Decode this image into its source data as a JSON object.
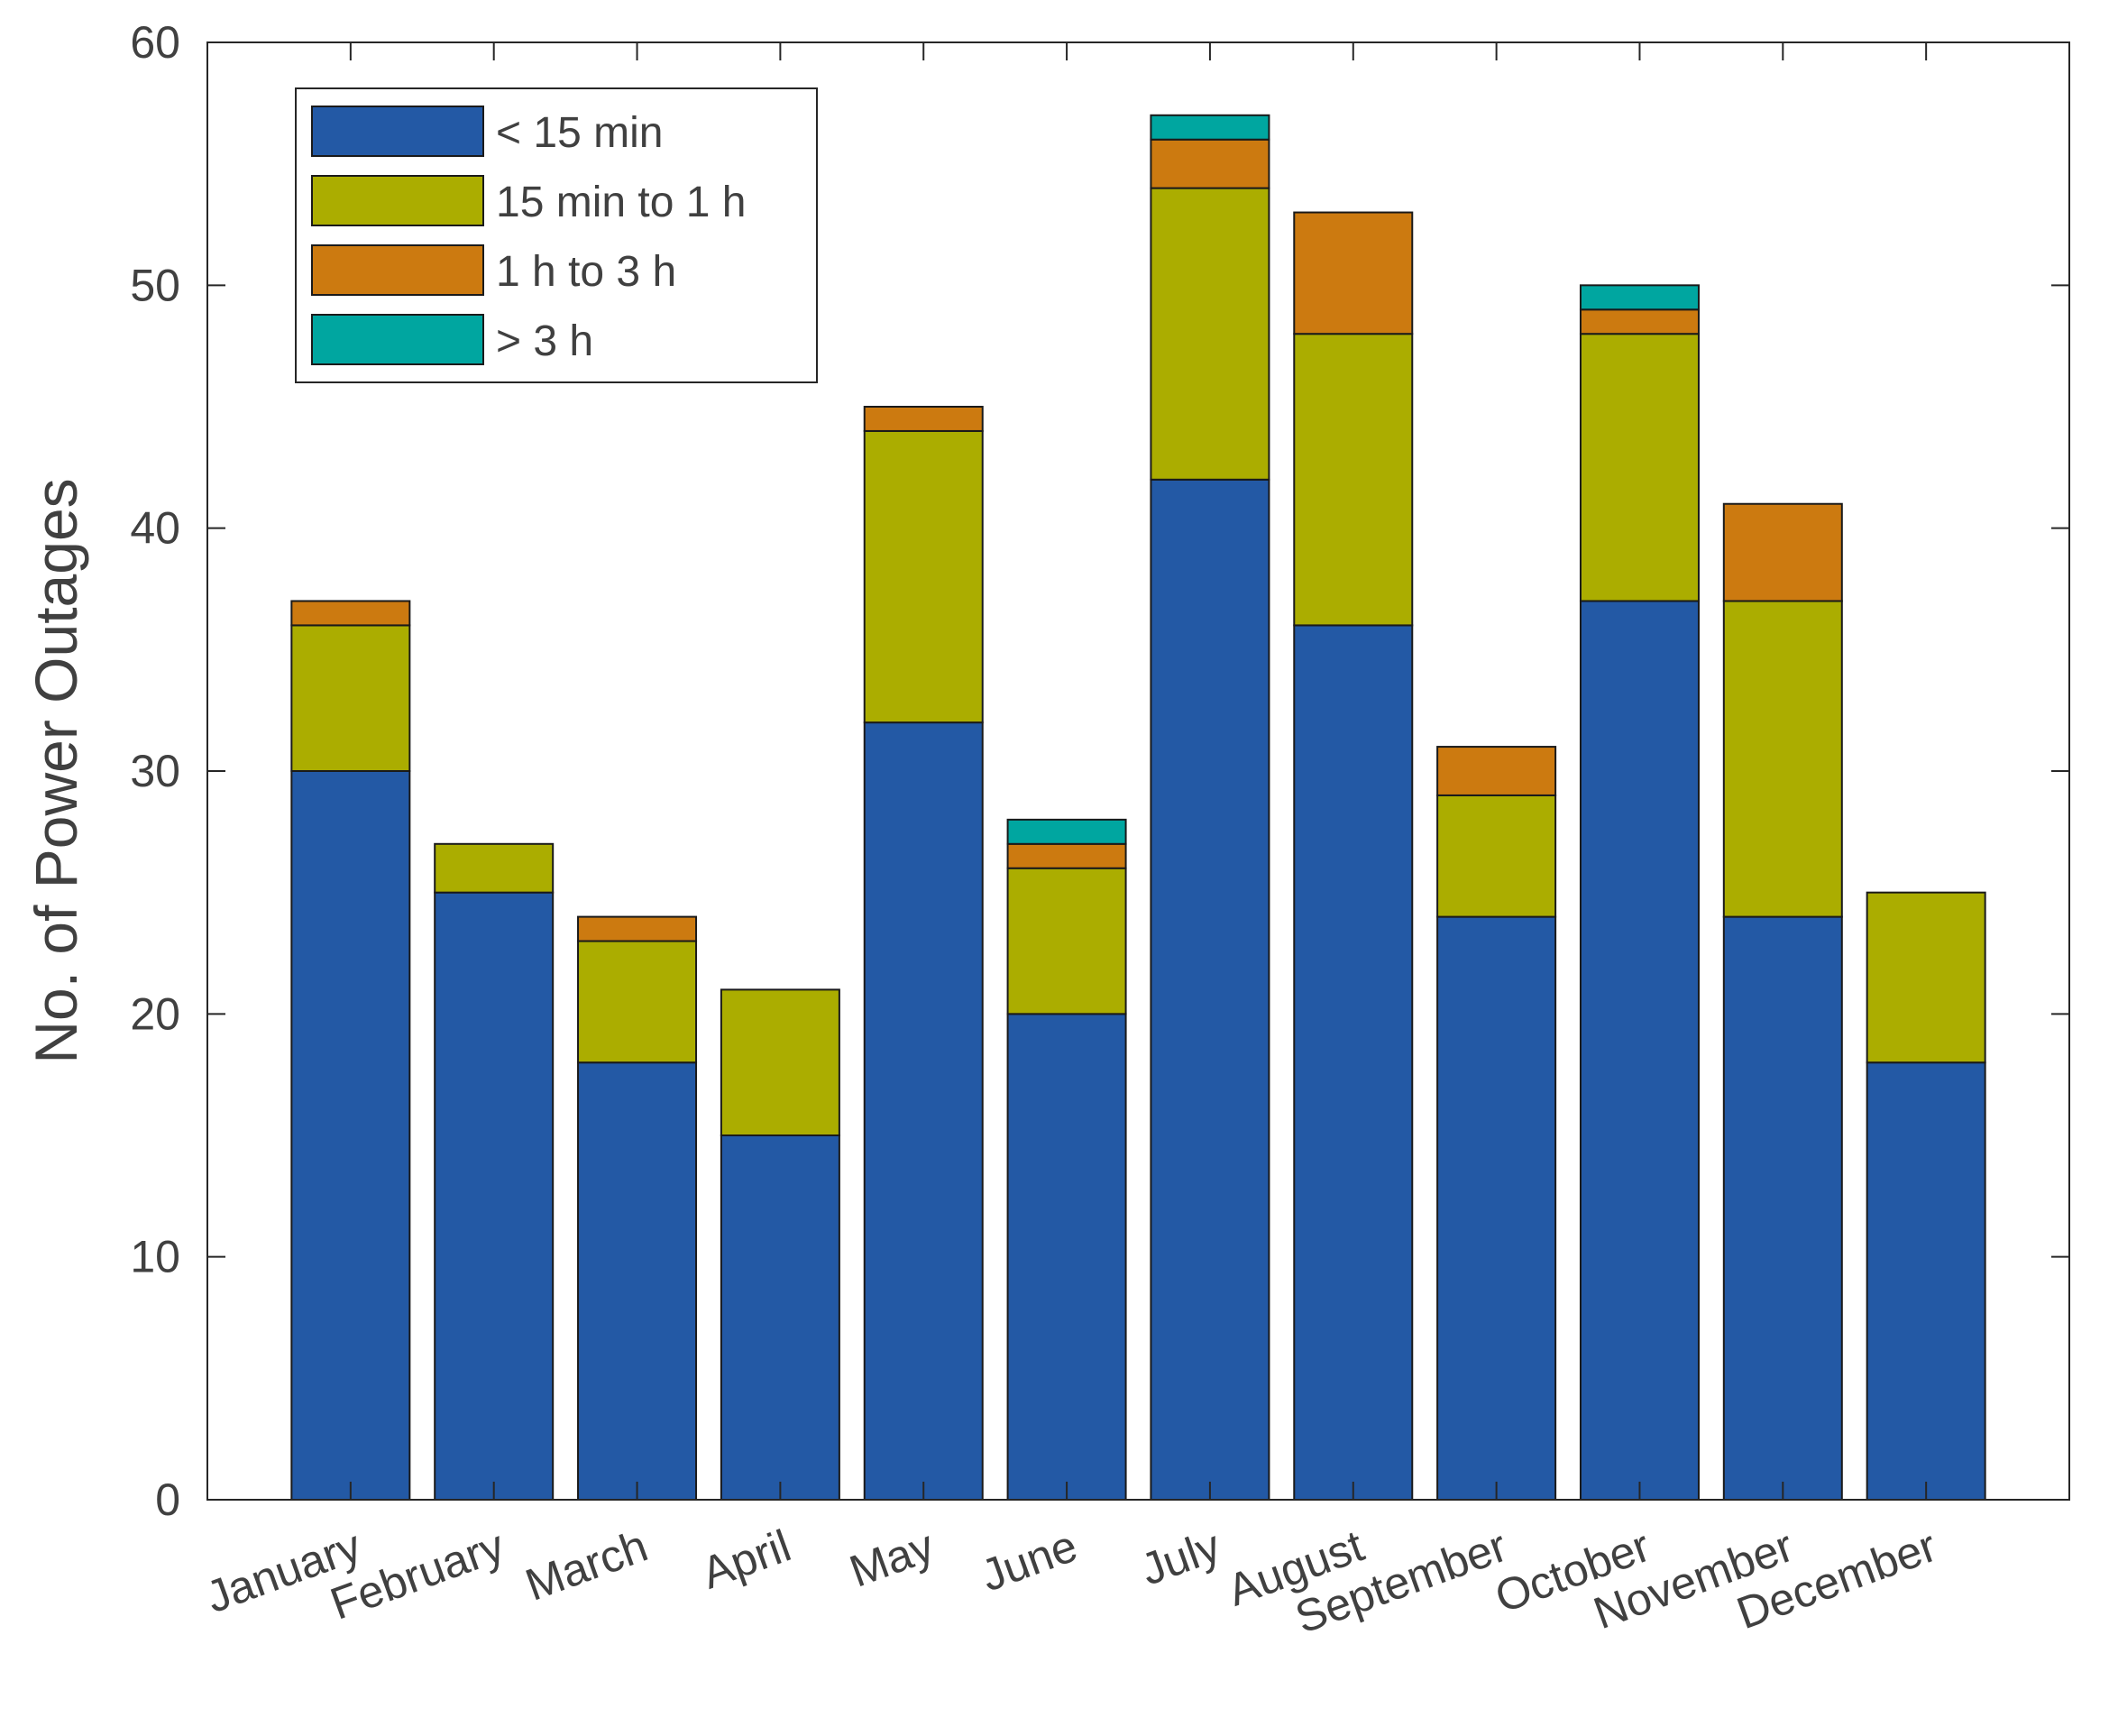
{
  "chart_data": {
    "type": "bar",
    "stacked": true,
    "title": "",
    "xlabel": "",
    "ylabel": "No. of Power Outages",
    "ylim": [
      0,
      60
    ],
    "yticks": [
      0,
      10,
      20,
      30,
      40,
      50,
      60
    ],
    "grid": false,
    "legend_position": "top-left",
    "categories": [
      "January",
      "February",
      "March",
      "April",
      "May",
      "June",
      "July",
      "August",
      "September",
      "October",
      "November",
      "December"
    ],
    "series": [
      {
        "name": "< 15 min",
        "color": "#2359a5",
        "values": [
          30,
          25,
          18,
          15,
          32,
          20,
          42,
          36,
          24,
          37,
          24,
          18
        ]
      },
      {
        "name": "15 min to 1 h",
        "color": "#abad00",
        "values": [
          6,
          2,
          5,
          6,
          12,
          6,
          12,
          12,
          5,
          11,
          13,
          7
        ]
      },
      {
        "name": "1 h to 3 h",
        "color": "#cc7a10",
        "values": [
          1,
          0,
          1,
          0,
          1,
          1,
          2,
          5,
          2,
          1,
          4,
          0
        ]
      },
      {
        "name": "> 3 h",
        "color": "#00a6a0",
        "values": [
          0,
          0,
          0,
          0,
          0,
          1,
          1,
          0,
          0,
          1,
          0,
          0
        ]
      }
    ]
  }
}
